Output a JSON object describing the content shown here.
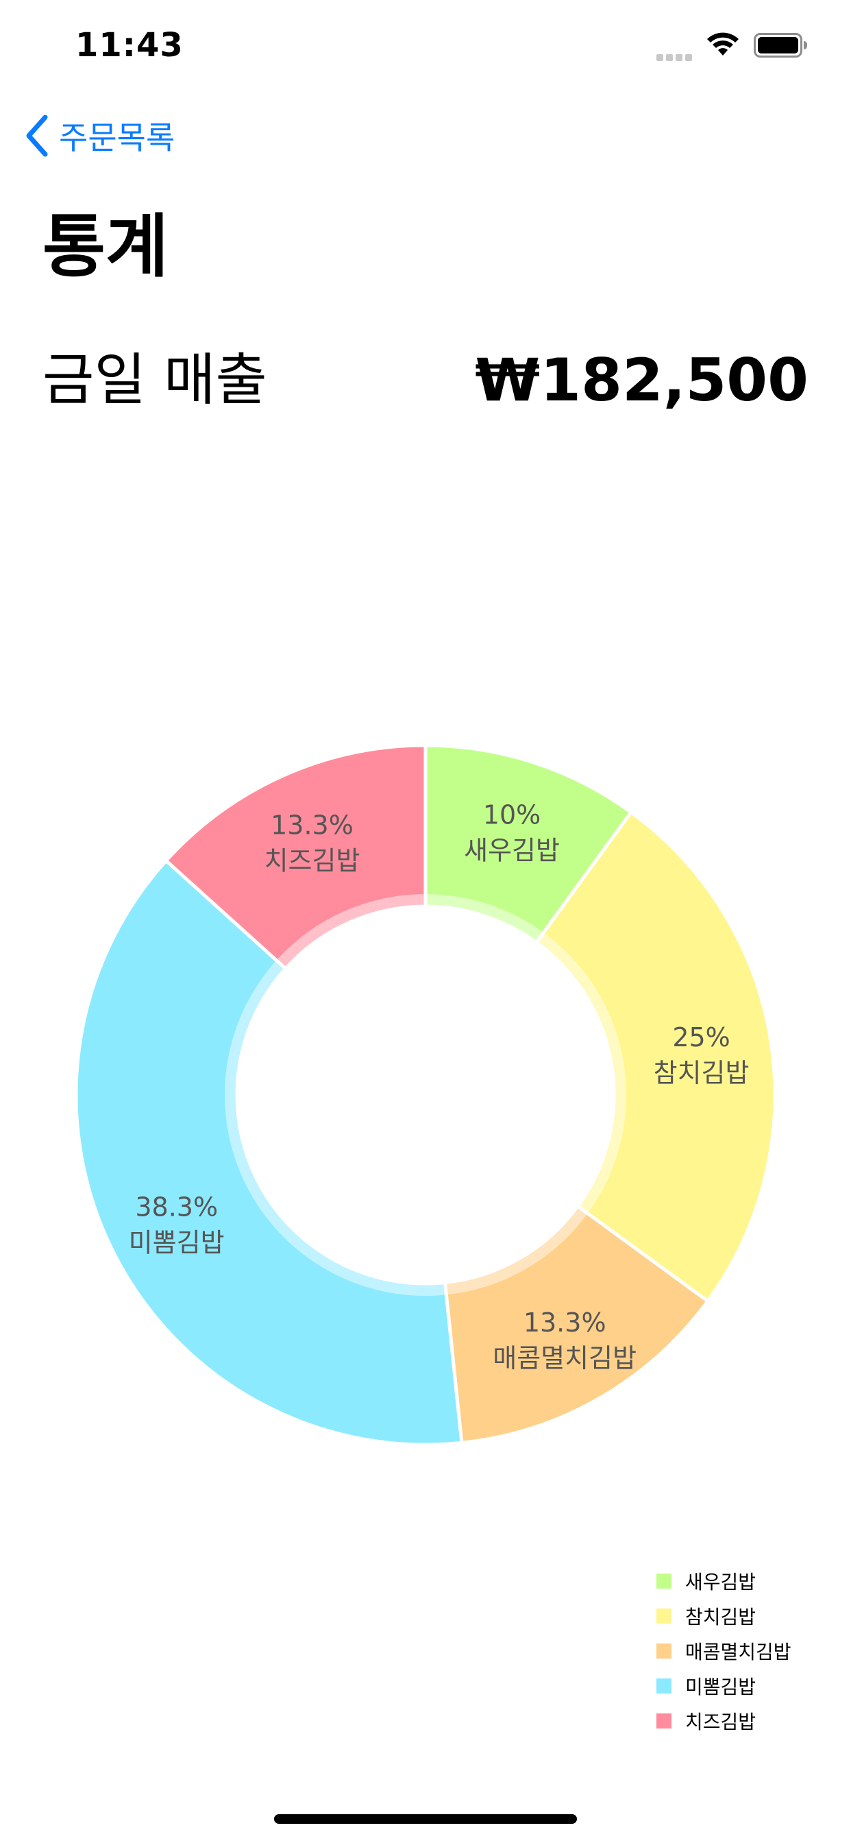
{
  "status_bar": {
    "time": "11:43"
  },
  "nav": {
    "back_label": "주문목록"
  },
  "header": {
    "title": "통계"
  },
  "summary": {
    "label": "금일 매출",
    "value": "₩182,500"
  },
  "colors": {
    "accent": "#0a7bff",
    "label_text": "#555555"
  },
  "chart_data": {
    "type": "pie",
    "donut": true,
    "categories": [
      "새우김밥",
      "참치김밥",
      "매콤멸치김밥",
      "미뽐김밥",
      "치즈김밥"
    ],
    "values": [
      10,
      25,
      13.3,
      38.3,
      13.3
    ],
    "percent_labels": [
      "10%",
      "25%",
      "13.3%",
      "38.3%",
      "13.3%"
    ],
    "colors": [
      "#c2ff8a",
      "#fff68f",
      "#ffd08a",
      "#8ceaff",
      "#ff8c9d"
    ],
    "legend_position": "bottom-right"
  }
}
